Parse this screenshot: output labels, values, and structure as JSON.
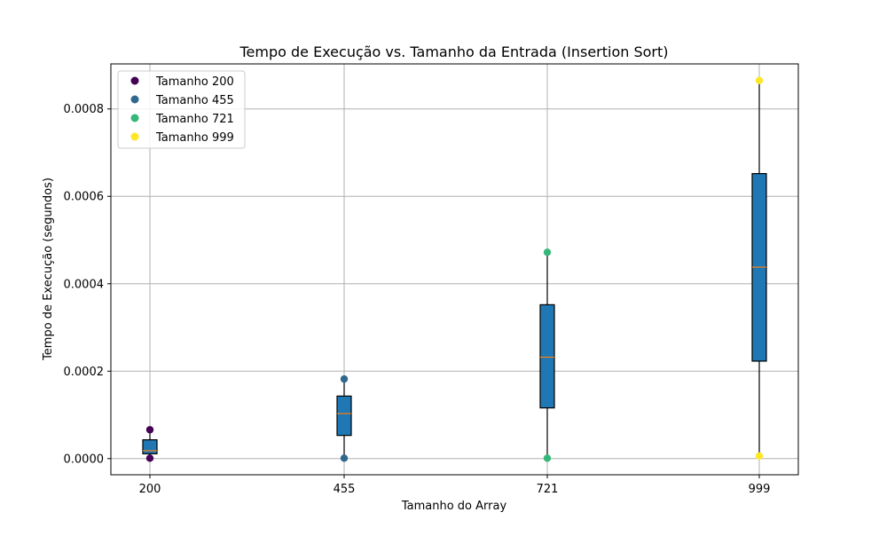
{
  "chart_data": {
    "type": "box",
    "title": "Tempo de Execução vs. Tamanho da Entrada (Insertion Sort)",
    "xlabel": "Tamanho do Array",
    "ylabel": "Tempo de Execução (segundos)",
    "categories": [
      "200",
      "455",
      "721",
      "999"
    ],
    "ylim": [
      -3.7e-05,
      0.000903
    ],
    "y_ticks": [
      0.0,
      0.0002,
      0.0004,
      0.0006,
      0.0008
    ],
    "y_tick_labels": [
      "0.0000",
      "0.0002",
      "0.0004",
      "0.0006",
      "0.0008"
    ],
    "grid": true,
    "legend_position": "top-left",
    "box_color": "#1f77b4",
    "median_color": "#ff7f0e",
    "boxes": [
      {
        "category": "200",
        "whisker_low": 0.0,
        "q1": 1.1e-05,
        "median": 1.8e-05,
        "q3": 4.3e-05,
        "whisker_high": 6.6e-05
      },
      {
        "category": "455",
        "whisker_low": 0.0,
        "q1": 5.3e-05,
        "median": 0.000103,
        "q3": 0.000143,
        "whisker_high": 0.000182
      },
      {
        "category": "721",
        "whisker_low": 0.0,
        "q1": 0.000116,
        "median": 0.000232,
        "q3": 0.000352,
        "whisker_high": 0.000472
      },
      {
        "category": "999",
        "whisker_low": 6e-06,
        "q1": 0.000223,
        "median": 0.000438,
        "q3": 0.000652,
        "whisker_high": 0.000865
      }
    ],
    "series": [
      {
        "name": "Tamanho 200",
        "color": "#440154",
        "x": [
          "200",
          "200"
        ],
        "y": [
          6.6e-05,
          1e-06
        ]
      },
      {
        "name": "Tamanho 455",
        "color": "#31688e",
        "x": [
          "455",
          "455"
        ],
        "y": [
          0.000182,
          1e-06
        ]
      },
      {
        "name": "Tamanho 721",
        "color": "#35b779",
        "x": [
          "721",
          "721"
        ],
        "y": [
          0.000472,
          1e-06
        ]
      },
      {
        "name": "Tamanho 999",
        "color": "#fde725",
        "x": [
          "999",
          "999"
        ],
        "y": [
          0.000865,
          6e-06
        ]
      }
    ]
  }
}
